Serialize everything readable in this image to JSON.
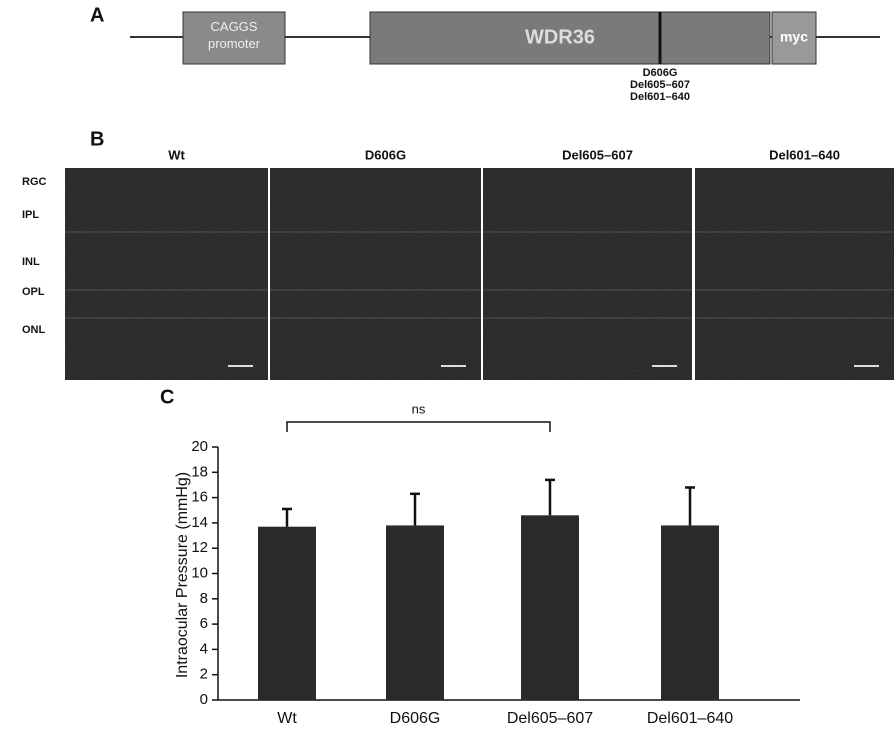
{
  "panel_a": {
    "label": "A",
    "promoter": "CAGGS promoter",
    "gene": "WDR36",
    "tag": "myc",
    "mutations": [
      "D606G",
      "Del605–607",
      "Del601–640"
    ]
  },
  "panel_b": {
    "label": "B",
    "columns": [
      "Wt",
      "D606G",
      "Del605–607",
      "Del601–640"
    ],
    "rows": [
      "RGC",
      "IPL",
      "INL",
      "OPL",
      "ONL"
    ]
  },
  "chart_data": {
    "type": "bar",
    "label": "C",
    "y_label": "Intraocular Pressure (mmHg)",
    "categories": [
      "Wt",
      "D606G",
      "Del605–607",
      "Del601–640"
    ],
    "values": [
      13.7,
      13.8,
      14.6,
      13.8
    ],
    "errors": [
      1.4,
      2.5,
      2.8,
      3.0
    ],
    "color": "#2a2a2a",
    "ylim": [
      0,
      20
    ],
    "yticks": [
      0,
      2,
      4,
      6,
      8,
      10,
      12,
      14,
      16,
      18,
      20
    ],
    "annotation": "ns"
  }
}
